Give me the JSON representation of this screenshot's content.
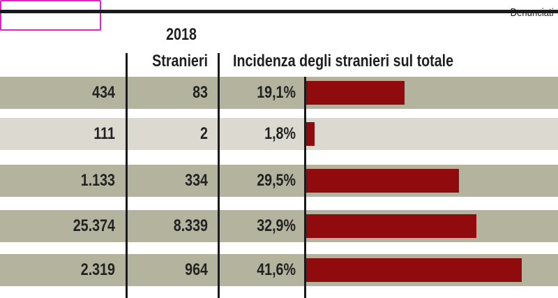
{
  "header": {
    "year": "2018",
    "col_denunciati": "Denunciati",
    "col_stranieri": "Stranieri",
    "col_incidenza": "Incidenza degli stranieri sul totale"
  },
  "colors": {
    "bar": "#8f0b0e",
    "row_dark": "#b4b49e",
    "row_light": "#dcdad0",
    "highlight_box": "#e51ec9"
  },
  "chart_data": {
    "type": "bar",
    "orientation": "horizontal",
    "year": "2018",
    "columns": [
      "Denunciati",
      "Stranieri",
      "Incidenza degli stranieri sul totale"
    ],
    "rows": [
      {
        "denunciati": "434",
        "stranieri": "83",
        "incidenza_label": "19,1%",
        "value": 19.1
      },
      {
        "denunciati": "111",
        "stranieri": "2",
        "incidenza_label": "1,8%",
        "value": 1.8
      },
      {
        "denunciati": "1.133",
        "stranieri": "334",
        "incidenza_label": "29,5%",
        "value": 29.5
      },
      {
        "denunciati": "25.374",
        "stranieri": "8.339",
        "incidenza_label": "32,9%",
        "value": 32.9
      },
      {
        "denunciati": "2.319",
        "stranieri": "964",
        "incidenza_label": "41,6%",
        "value": 41.6
      }
    ],
    "xlim": [
      0,
      100
    ],
    "grid": false,
    "legend": "none"
  }
}
